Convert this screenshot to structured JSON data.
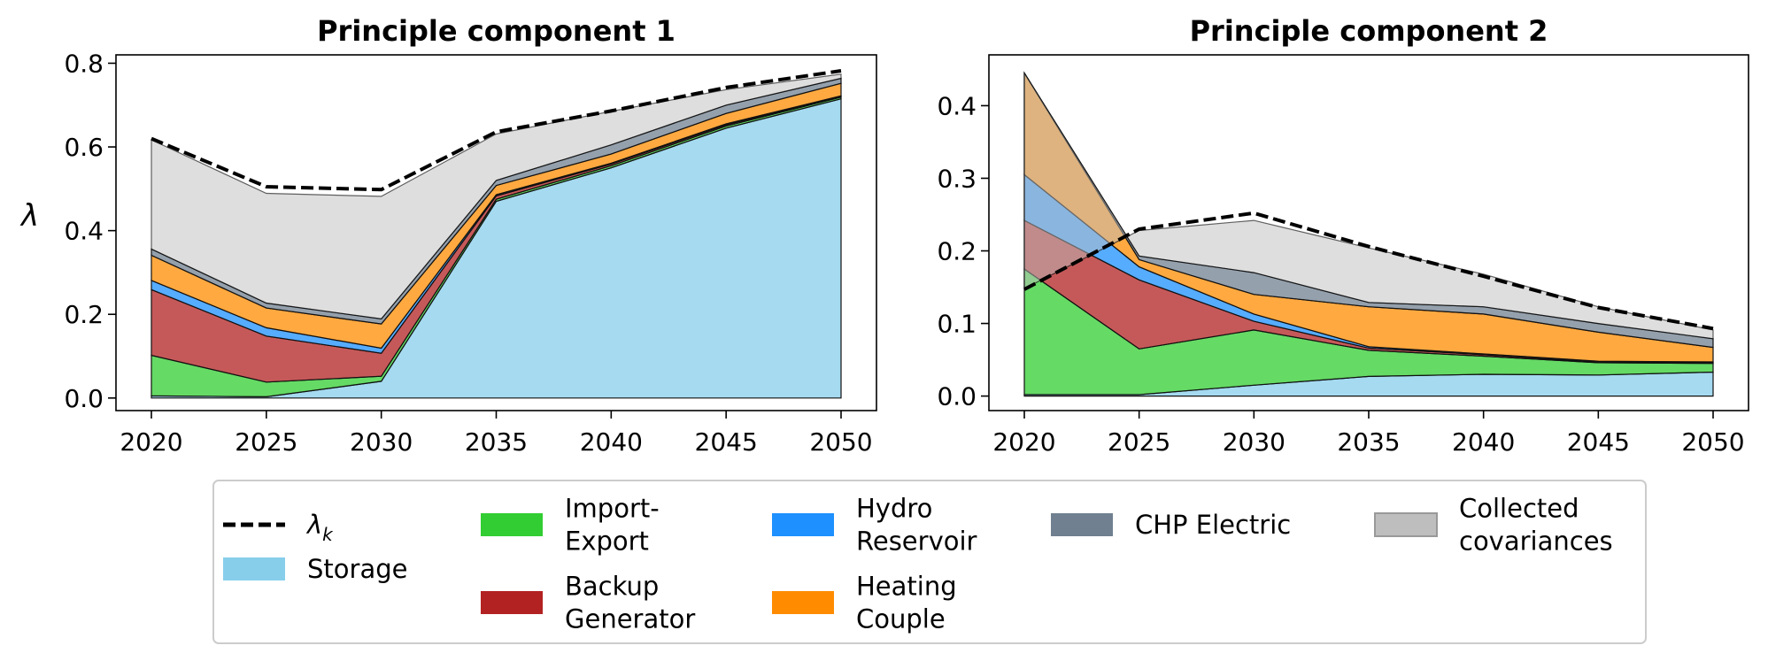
{
  "figure": {
    "ylabel": "λ",
    "legend": [
      {
        "key": "lambda",
        "label": "λ",
        "sub": "k",
        "kind": "line",
        "color": "#000000"
      },
      {
        "key": "storage",
        "label": "Storage",
        "kind": "patch",
        "color": "#87ceeb"
      },
      {
        "key": "import",
        "label": "Import-\nExport",
        "kind": "patch",
        "color": "#32cd32"
      },
      {
        "key": "backup",
        "label": "Backup\nGenerator",
        "kind": "patch",
        "color": "#b22222"
      },
      {
        "key": "hydro",
        "label": "Hydro\nReservoir",
        "kind": "patch",
        "color": "#1e90ff"
      },
      {
        "key": "heating",
        "label": "Heating\nCouple",
        "kind": "patch",
        "color": "#ff8c00"
      },
      {
        "key": "chp",
        "label": "CHP Electric",
        "kind": "patch",
        "color": "#708090"
      },
      {
        "key": "collected",
        "label": "Collected\ncovariances",
        "kind": "patch",
        "color": "#bebebe"
      }
    ]
  },
  "chart_data": [
    {
      "type": "area",
      "title": "Principle component 1",
      "ylabel": "λ",
      "x": [
        2020,
        2025,
        2030,
        2035,
        2040,
        2045,
        2050
      ],
      "ylim": [
        -0.03,
        0.82
      ],
      "yticks": [
        0.0,
        0.2,
        0.4,
        0.6,
        0.8
      ],
      "series": [
        {
          "name": "Storage",
          "values": [
            0.005,
            0.003,
            0.04,
            0.47,
            0.55,
            0.645,
            0.715
          ]
        },
        {
          "name": "Import-Export",
          "values": [
            0.097,
            0.035,
            0.012,
            0.005,
            0.005,
            0.005,
            0.004
          ]
        },
        {
          "name": "Backup Generator",
          "values": [
            0.157,
            0.11,
            0.055,
            0.008,
            0.004,
            0.003,
            0.002
          ]
        },
        {
          "name": "Hydro Reservoir",
          "values": [
            0.022,
            0.02,
            0.012,
            0.003,
            0.002,
            0.002,
            0.001
          ]
        },
        {
          "name": "Heating Couple",
          "values": [
            0.06,
            0.047,
            0.058,
            0.022,
            0.022,
            0.025,
            0.03
          ]
        },
        {
          "name": "CHP Electric",
          "values": [
            0.015,
            0.012,
            0.012,
            0.012,
            0.022,
            0.02,
            0.012
          ]
        },
        {
          "name": "Collected covariances",
          "values": [
            0.261,
            0.262,
            0.293,
            0.111,
            0.08,
            0.037,
            0.01
          ]
        }
      ],
      "lambda": [
        0.62,
        0.505,
        0.498,
        0.636,
        0.686,
        0.742,
        0.782
      ]
    },
    {
      "type": "area",
      "title": "Principle component 2",
      "x": [
        2020,
        2025,
        2030,
        2035,
        2040,
        2045,
        2050
      ],
      "ylim": [
        -0.02,
        0.47
      ],
      "yticks": [
        0.0,
        0.1,
        0.2,
        0.3,
        0.4
      ],
      "series": [
        {
          "name": "Storage",
          "values": [
            0.002,
            0.002,
            0.015,
            0.027,
            0.03,
            0.029,
            0.033
          ]
        },
        {
          "name": "Import-Export",
          "values": [
            0.173,
            0.063,
            0.076,
            0.036,
            0.025,
            0.017,
            0.012
          ]
        },
        {
          "name": "Backup Generator",
          "values": [
            0.067,
            0.095,
            0.012,
            0.003,
            0.002,
            0.001,
            0.001
          ]
        },
        {
          "name": "Hydro Reservoir",
          "values": [
            0.063,
            0.018,
            0.01,
            0.002,
            0.001,
            0.001,
            0.001
          ]
        },
        {
          "name": "Heating Couple",
          "values": [
            0.14,
            0.01,
            0.027,
            0.055,
            0.055,
            0.04,
            0.02
          ]
        },
        {
          "name": "CHP Electric",
          "values": [
            0.0,
            0.005,
            0.03,
            0.006,
            0.01,
            0.012,
            0.012
          ]
        },
        {
          "name": "Collected covariances",
          "values": [
            -0.297,
            0.035,
            0.072,
            0.075,
            0.045,
            0.023,
            0.012
          ]
        }
      ],
      "lambda": [
        0.147,
        0.23,
        0.252,
        0.206,
        0.165,
        0.122,
        0.093
      ]
    }
  ]
}
